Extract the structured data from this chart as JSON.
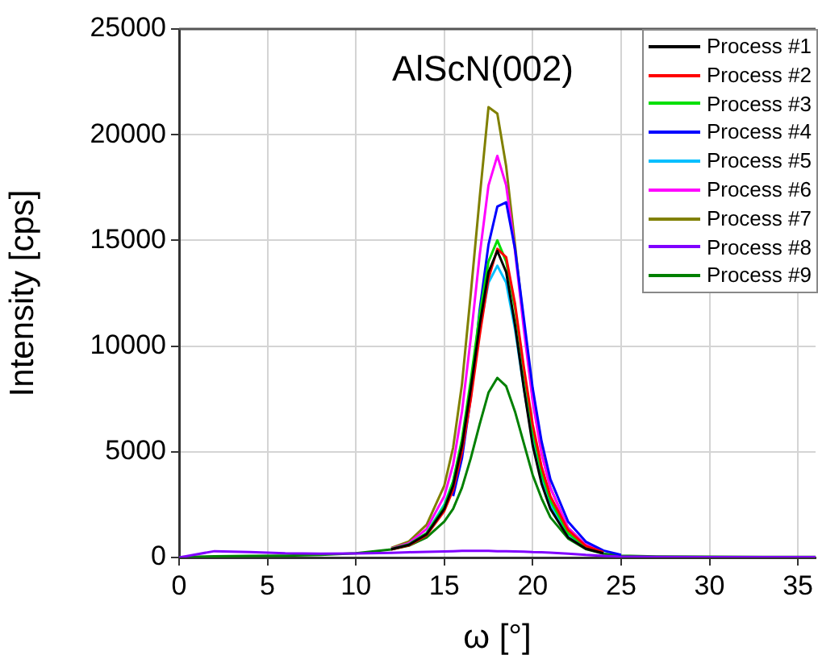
{
  "chart_data": {
    "type": "line",
    "title": "AlScN(002)",
    "xlabel": "ω [°]",
    "ylabel": "Intensity [cps]",
    "x": [
      0,
      2,
      4,
      6,
      8,
      10,
      12,
      13,
      14,
      15,
      15.5,
      16,
      16.5,
      17,
      17.5,
      18,
      18.5,
      19,
      19.5,
      20,
      20.5,
      21,
      22,
      23,
      24,
      25,
      27,
      30,
      33,
      36
    ],
    "xlim": [
      0,
      36
    ],
    "xticks": [
      0,
      5,
      10,
      15,
      20,
      25,
      30,
      35
    ],
    "ylim": [
      0,
      25000
    ],
    "yticks": [
      0,
      5000,
      10000,
      15000,
      20000,
      25000
    ],
    "grid": true,
    "legend": "top right",
    "marker": "none",
    "line_style": "solid",
    "series": [
      {
        "name": "Process #1",
        "color": "#000000",
        "values": [
          null,
          null,
          null,
          null,
          null,
          null,
          390,
          600,
          1100,
          2300,
          3400,
          5300,
          8000,
          11000,
          13500,
          14500,
          13500,
          11000,
          8000,
          5300,
          3500,
          2300,
          950,
          420,
          200,
          null,
          null,
          null,
          null,
          null
        ]
      },
      {
        "name": "Process #2",
        "color": "#ff0000",
        "values": [
          null,
          null,
          null,
          null,
          null,
          null,
          380,
          580,
          1050,
          2200,
          3200,
          5000,
          7500,
          10500,
          13200,
          14600,
          14200,
          12000,
          9000,
          6300,
          4300,
          2900,
          1300,
          550,
          250,
          null,
          null,
          null,
          null,
          null
        ]
      },
      {
        "name": "Process #3",
        "color": "#00e000",
        "values": [
          null,
          null,
          null,
          null,
          null,
          null,
          400,
          620,
          1150,
          2400,
          3600,
          5600,
          8400,
          11500,
          14000,
          15000,
          14000,
          11800,
          8800,
          6000,
          4000,
          2700,
          1150,
          500,
          220,
          null,
          null,
          null,
          null,
          null
        ]
      },
      {
        "name": "Process #4",
        "color": "#0000ff",
        "values": [
          null,
          null,
          null,
          null,
          null,
          null,
          null,
          null,
          null,
          null,
          2900,
          4700,
          7600,
          11700,
          14800,
          16600,
          16800,
          14600,
          11300,
          8000,
          5500,
          3700,
          1700,
          750,
          330,
          130,
          null,
          null,
          null,
          null
        ]
      },
      {
        "name": "Process #5",
        "color": "#00bfff",
        "values": [
          null,
          null,
          null,
          null,
          null,
          null,
          390,
          620,
          1150,
          2500,
          3600,
          5500,
          8000,
          10800,
          13000,
          13800,
          13000,
          10800,
          8000,
          5500,
          3700,
          2500,
          1100,
          480,
          210,
          null,
          null,
          null,
          null,
          null
        ]
      },
      {
        "name": "Process #6",
        "color": "#ff00ff",
        "values": [
          null,
          null,
          null,
          null,
          null,
          null,
          420,
          680,
          1350,
          2900,
          4400,
          6900,
          10400,
          14300,
          17600,
          19000,
          17600,
          14500,
          10800,
          7400,
          4900,
          3300,
          1400,
          600,
          260,
          null,
          null,
          null,
          null,
          null
        ]
      },
      {
        "name": "Process #7",
        "color": "#808000",
        "values": [
          null,
          null,
          null,
          null,
          null,
          null,
          450,
          760,
          1550,
          3400,
          5200,
          8200,
          12500,
          17000,
          21300,
          21000,
          18500,
          14800,
          11000,
          7500,
          5000,
          3300,
          1400,
          600,
          260,
          null,
          null,
          null,
          null,
          null
        ]
      },
      {
        "name": "Process #8",
        "color": "#8000ff",
        "values": [
          0,
          300,
          260,
          200,
          180,
          190,
          220,
          250,
          270,
          290,
          300,
          310,
          310,
          310,
          310,
          300,
          300,
          290,
          280,
          260,
          250,
          230,
          180,
          120,
          80,
          50,
          30,
          20,
          20,
          20
        ]
      },
      {
        "name": "Process #9",
        "color": "#008000",
        "values": [
          20,
          60,
          80,
          90,
          120,
          200,
          380,
          560,
          950,
          1700,
          2300,
          3300,
          4700,
          6300,
          7800,
          8500,
          8100,
          6900,
          5400,
          3900,
          2800,
          1900,
          900,
          400,
          180,
          90,
          50,
          40,
          30,
          30
        ]
      }
    ]
  }
}
